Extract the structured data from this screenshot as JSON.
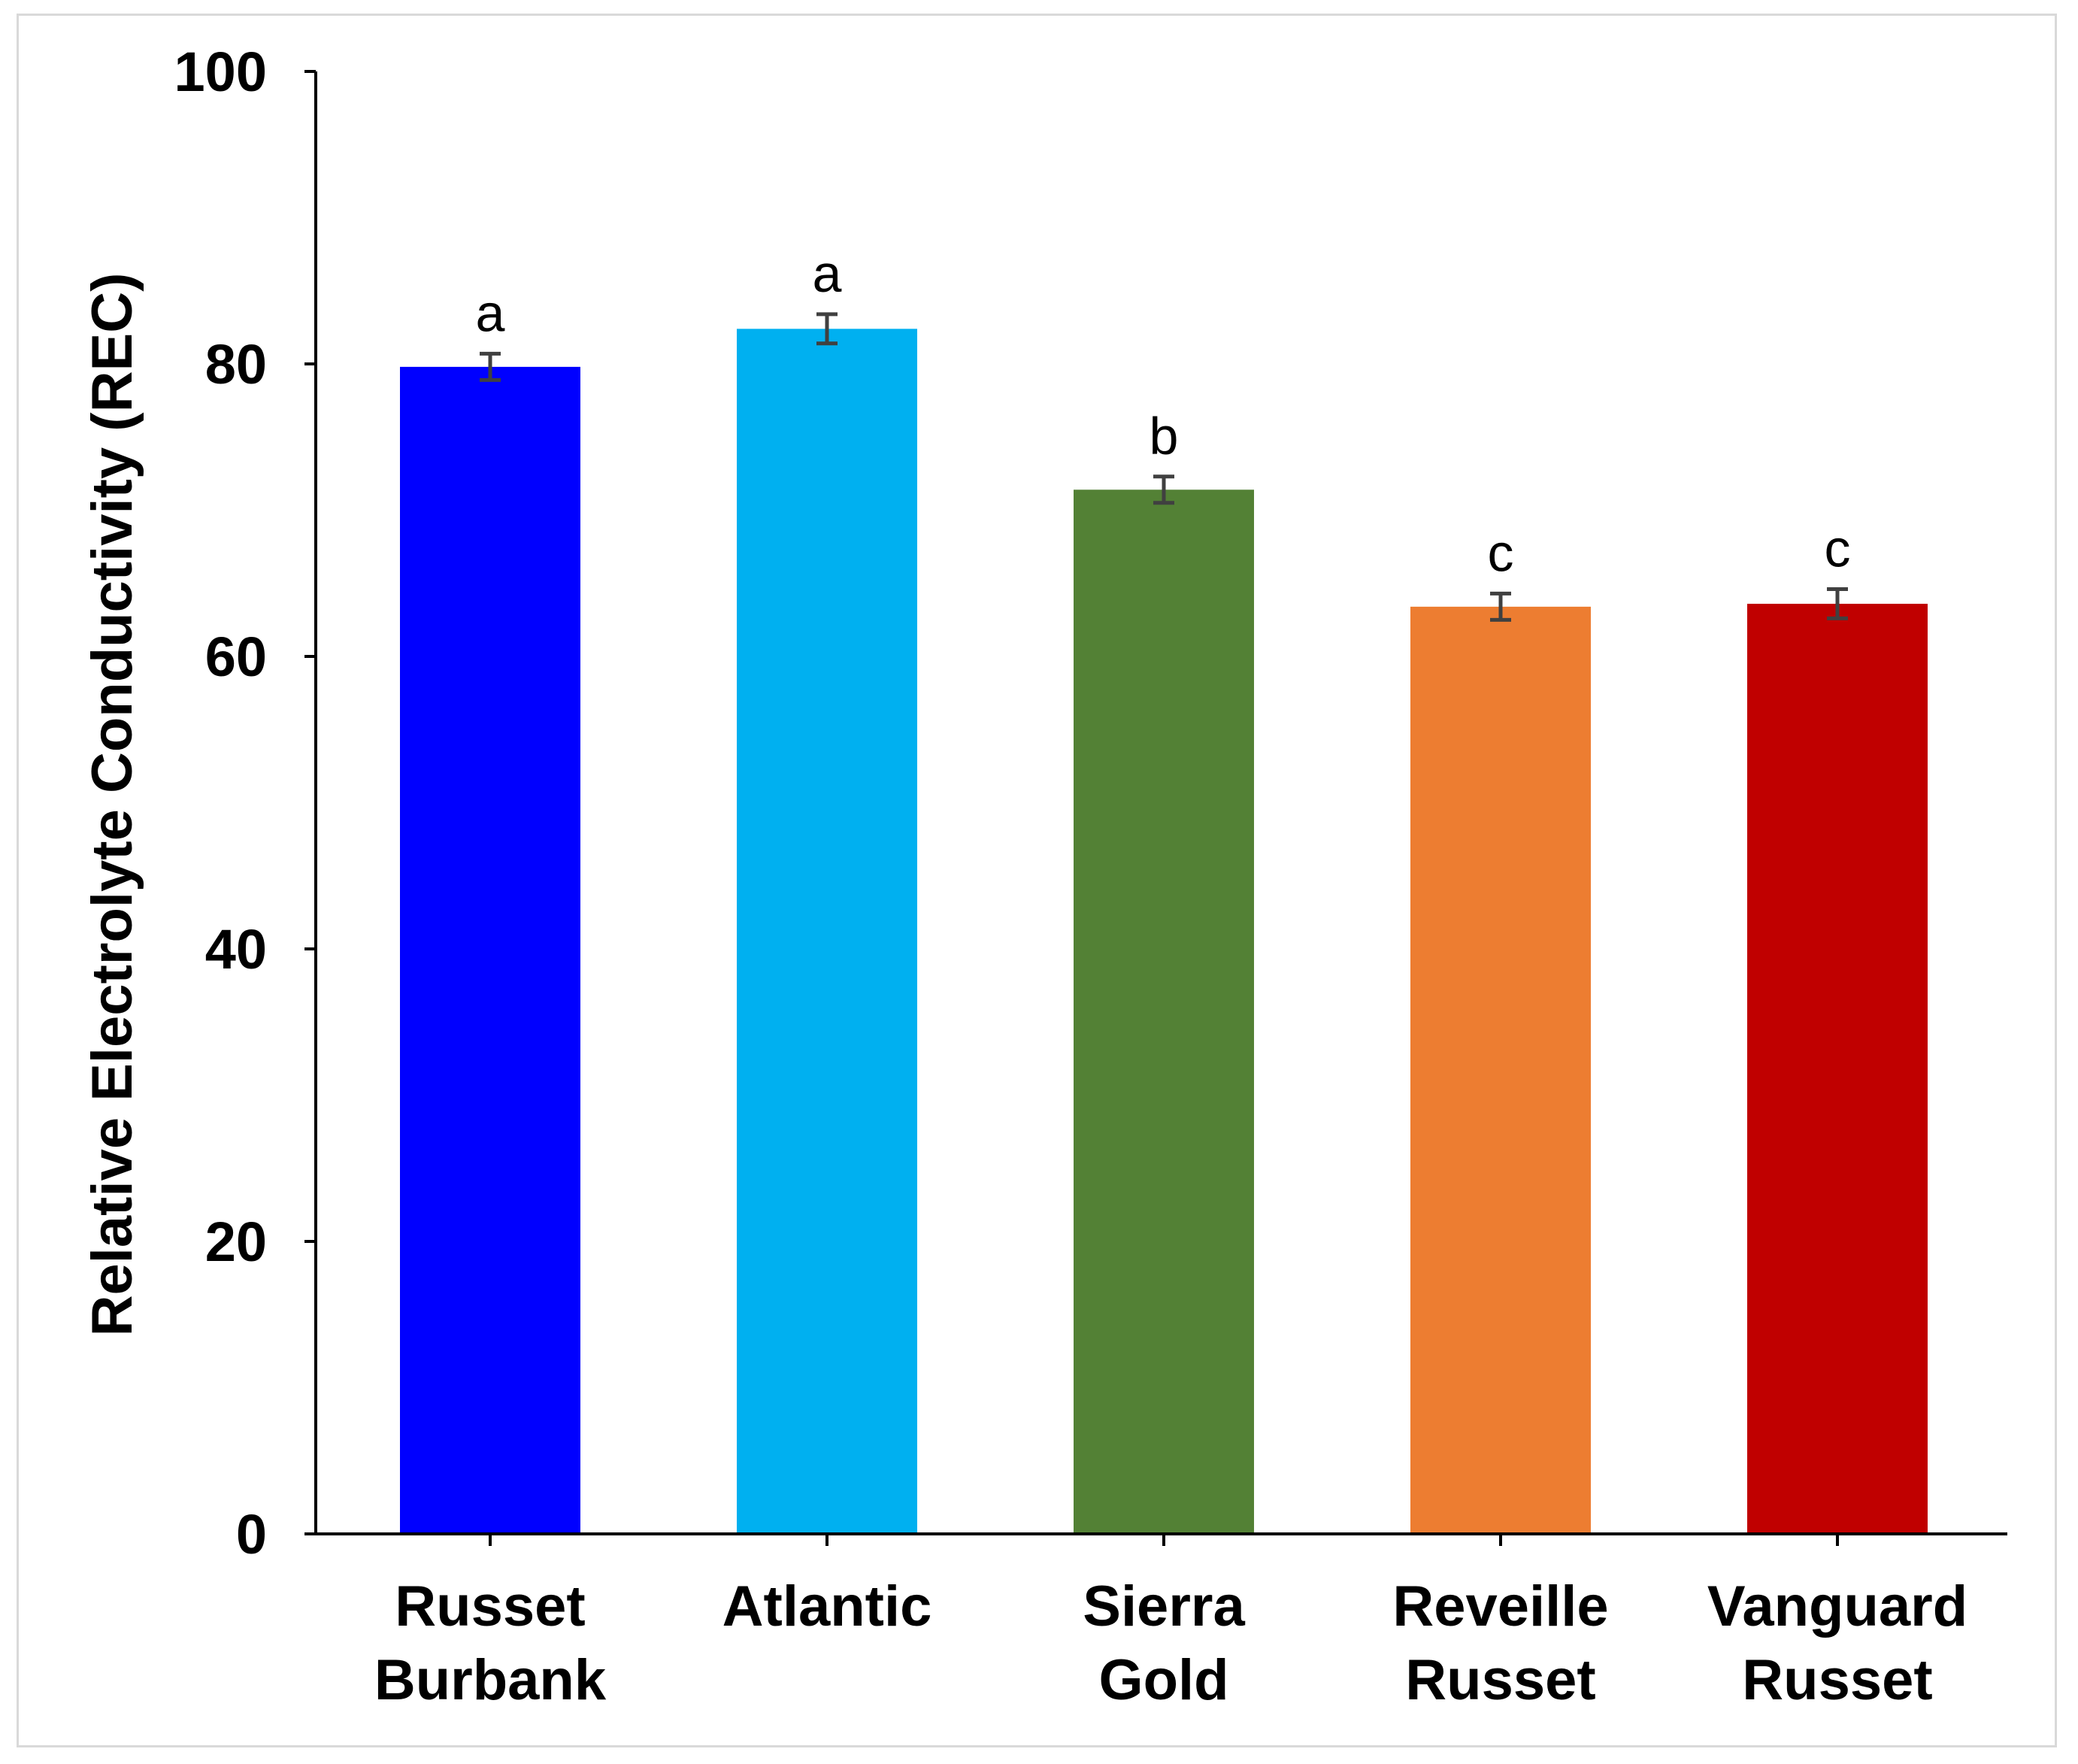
{
  "chart_data": {
    "type": "bar",
    "title": "",
    "ylabel": "Relative Electrolyte Conductivity (REC)",
    "xlabel": "",
    "ylim": [
      0,
      100
    ],
    "yticks": [
      0,
      20,
      40,
      60,
      80,
      100
    ],
    "categories": [
      [
        "Russet",
        "Burbank"
      ],
      [
        "Atlantic"
      ],
      [
        "Sierra",
        "Gold"
      ],
      [
        "Reveille",
        "Russet"
      ],
      [
        "Vanguard",
        "Russet"
      ]
    ],
    "values": [
      79.8,
      82.4,
      71.4,
      63.4,
      63.6
    ],
    "errors": [
      0.9,
      1.0,
      0.9,
      0.9,
      1.0
    ],
    "significance": [
      "a",
      "a",
      "b",
      "c",
      "c"
    ],
    "colors": [
      "#0000FF",
      "#00B0F0",
      "#538135",
      "#ED7D31",
      "#C00000"
    ],
    "grid": false,
    "legend": "none"
  }
}
